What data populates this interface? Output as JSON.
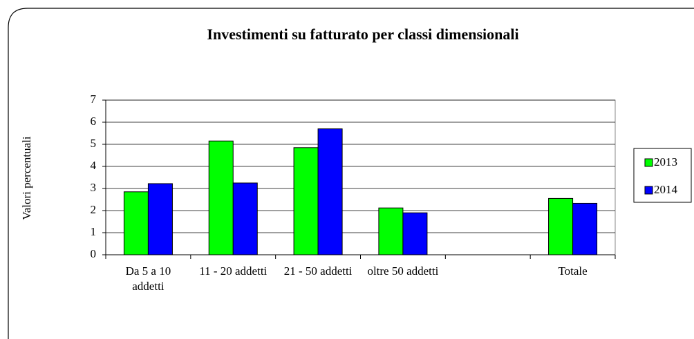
{
  "chart_data": {
    "type": "bar",
    "title": "Investimenti su fatturato per classi dimensionali",
    "y_label": "Valori percentuali",
    "categories": [
      "Da 5 a 10 addetti",
      "11 - 20 addetti",
      "21 - 50 addetti",
      "oltre 50 addetti",
      null,
      "Totale"
    ],
    "series": [
      {
        "name": "2013",
        "color": "#00ff00",
        "values": [
          2.85,
          5.15,
          4.85,
          2.12,
          null,
          2.55
        ]
      },
      {
        "name": "2014",
        "color": "#0000ff",
        "values": [
          3.22,
          3.25,
          5.7,
          1.9,
          null,
          2.33
        ]
      }
    ],
    "ylim": [
      0,
      7
    ],
    "yticks": [
      0,
      1,
      2,
      3,
      4,
      5,
      6,
      7
    ],
    "grid": true,
    "legend": "right"
  }
}
